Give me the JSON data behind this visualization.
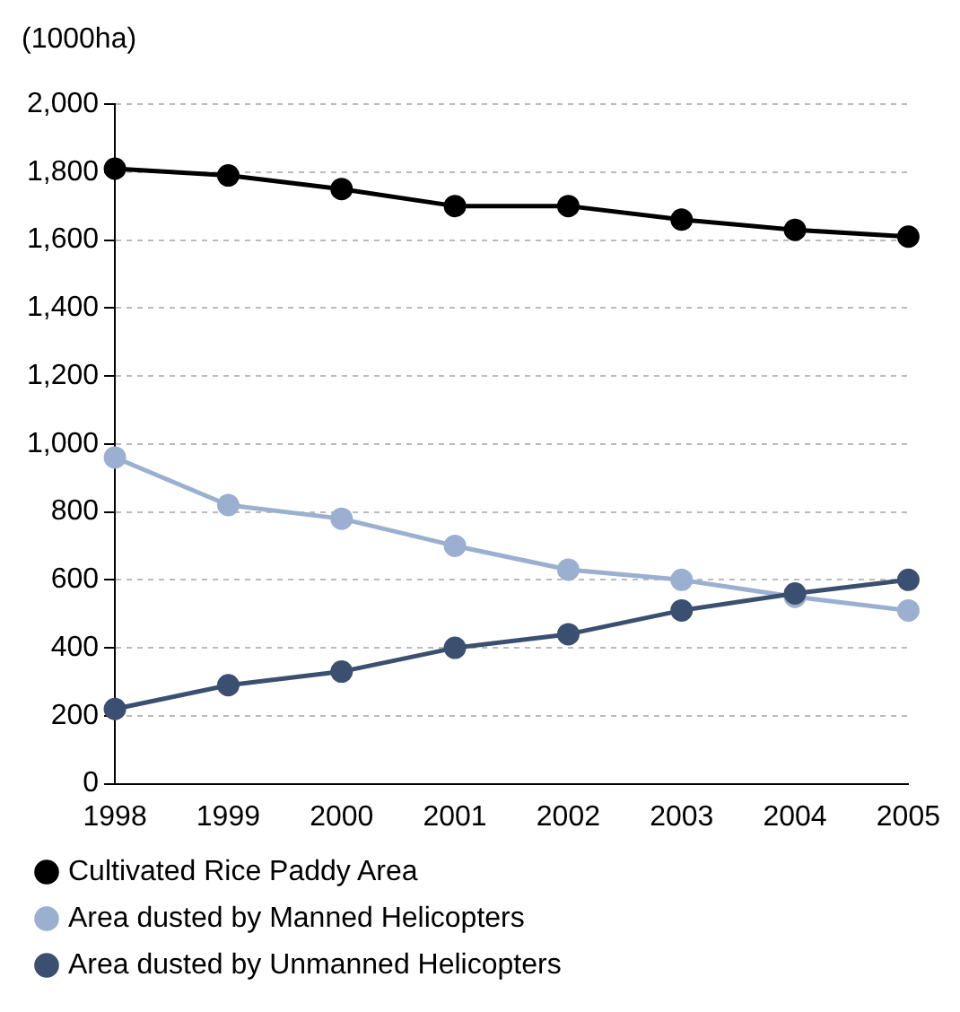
{
  "chart_data": {
    "type": "line",
    "ylabel": "(1000ha)",
    "categories": [
      "1998",
      "1999",
      "2000",
      "2001",
      "2002",
      "2003",
      "2004",
      "2005"
    ],
    "series": [
      {
        "name": "Cultivated Rice Paddy Area",
        "color": "#000000",
        "values": [
          1810,
          1790,
          1750,
          1700,
          1700,
          1660,
          1630,
          1610
        ]
      },
      {
        "name": "Area dusted by Manned Helicopters",
        "color": "#9bb0d0",
        "values": [
          960,
          820,
          780,
          700,
          630,
          600,
          550,
          510
        ]
      },
      {
        "name": "Area dusted by Unmanned Helicopters",
        "color": "#3b5070",
        "values": [
          220,
          290,
          330,
          400,
          440,
          510,
          560,
          600
        ]
      }
    ],
    "ylim": [
      0,
      2000
    ],
    "yticks": [
      0,
      200,
      400,
      600,
      800,
      {
        "value": 1000,
        "label": "1,000"
      },
      {
        "value": 1200,
        "label": "1,200"
      },
      {
        "value": 1400,
        "label": "1,400"
      },
      {
        "value": 1600,
        "label": "1,600"
      },
      {
        "value": 1800,
        "label": "1,800"
      },
      {
        "value": 2000,
        "label": "2,000"
      }
    ],
    "grid": "y",
    "legend": "bottom",
    "marker": "circle",
    "line_style": "solid"
  }
}
